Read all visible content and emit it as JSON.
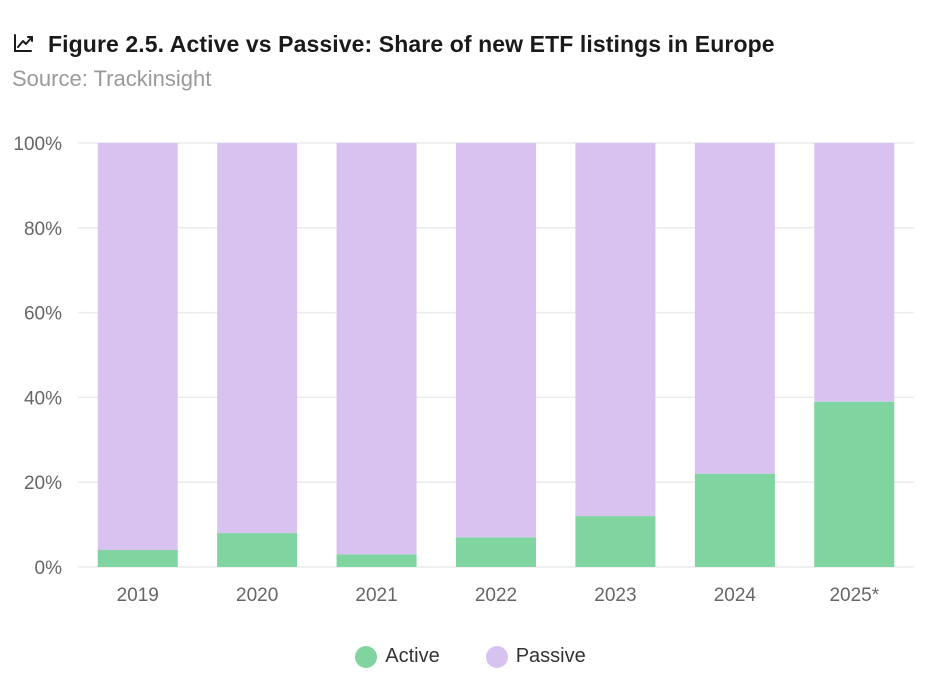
{
  "header": {
    "title": "Figure 2.5. Active vs Passive: Share of new ETF listings in Europe",
    "subtitle": "Source: Trackinsight",
    "icon": "chart-line-icon"
  },
  "colors": {
    "active": "#7fd4a0",
    "passive": "#d8c3f0",
    "grid": "#ebebeb",
    "axis_text": "#666666"
  },
  "legend": {
    "items": [
      {
        "label": "Active",
        "color": "#7fd4a0"
      },
      {
        "label": "Passive",
        "color": "#d8c3f0"
      }
    ]
  },
  "chart_data": {
    "type": "bar",
    "stacked": true,
    "categories": [
      "2019",
      "2020",
      "2021",
      "2022",
      "2023",
      "2024",
      "2025*"
    ],
    "series": [
      {
        "name": "Active",
        "values": [
          4,
          8,
          3,
          7,
          12,
          22,
          39
        ]
      },
      {
        "name": "Passive",
        "values": [
          96,
          92,
          97,
          93,
          88,
          78,
          61
        ]
      }
    ],
    "title": "Figure 2.5. Active vs Passive: Share of new ETF listings in Europe",
    "subtitle": "Source: Trackinsight",
    "xlabel": "",
    "ylabel": "",
    "ylim": [
      0,
      100
    ],
    "yticks": [
      "0%",
      "20%",
      "40%",
      "60%",
      "80%",
      "100%"
    ],
    "grid": true,
    "legend_position": "bottom"
  }
}
